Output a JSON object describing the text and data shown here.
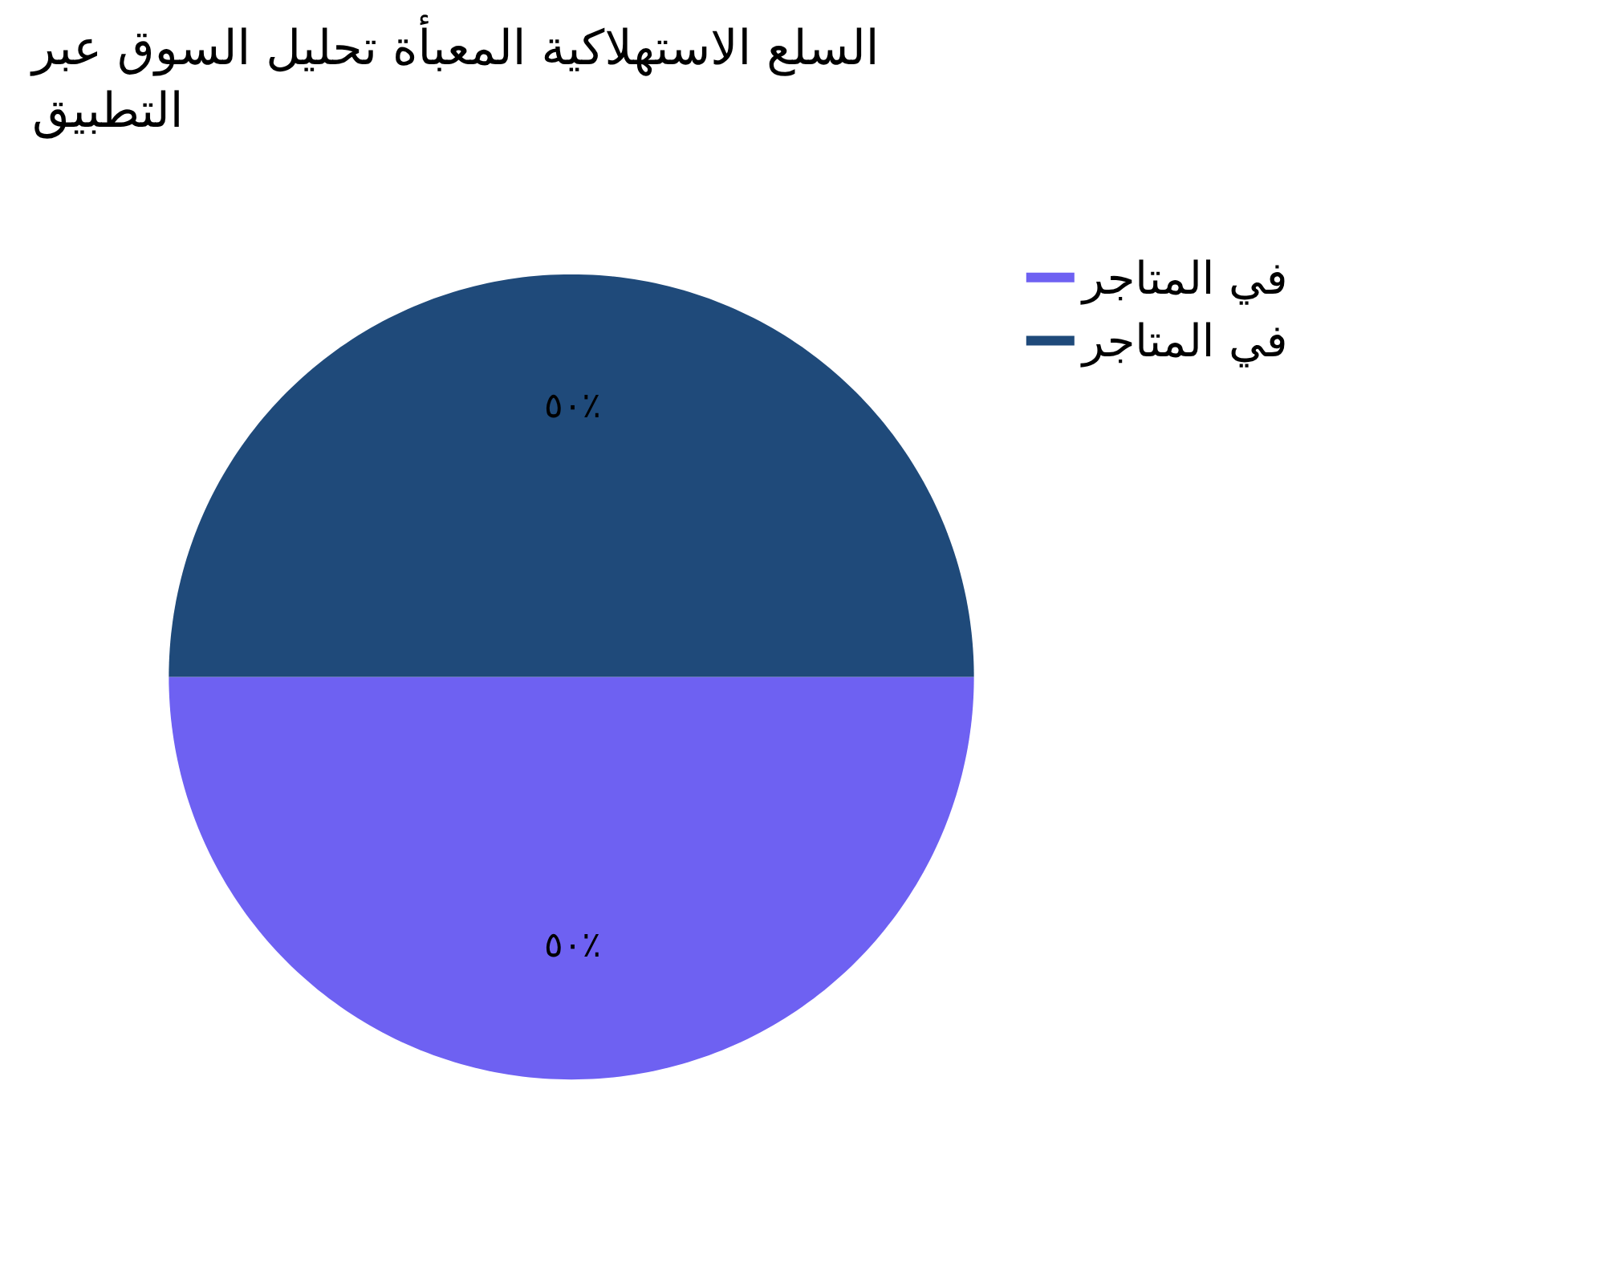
{
  "chart_data": {
    "type": "pie",
    "title": "السلع الاستهلاكية المعبأة تحليل السوق عبر التطبيق",
    "categories": [
      "في المتاجر",
      "في المتاجر"
    ],
    "values": [
      50,
      50
    ],
    "value_labels": [
      "٥٠٪",
      "٥٠٪"
    ],
    "colors": [
      "#6e61f2",
      "#1f4a7a"
    ],
    "legend": "top right"
  }
}
